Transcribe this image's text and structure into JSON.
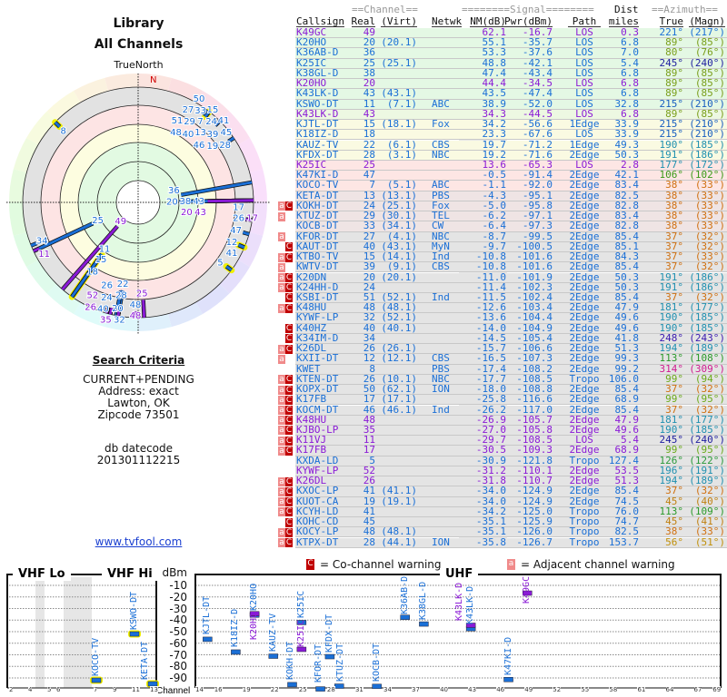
{
  "header": {
    "title": "Library",
    "subtitle": "All Channels",
    "north_label": "TrueNorth",
    "n_marker": "N"
  },
  "criteria": {
    "heading": "Search Criteria",
    "lines": [
      "CURRENT+PENDING",
      "Address: exact",
      "Lawton, OK",
      "Zipcode 73501"
    ],
    "db_label": "db datecode",
    "db_value": "201301112215",
    "link": "www.tvfool.com"
  },
  "table": {
    "group_headers": {
      "channel": "==Channel==",
      "signal": "========Signal========",
      "dist": "Dist",
      "azimuth": "==Azimuth=="
    },
    "columns": [
      "Callsign",
      "Real",
      "(Virt)",
      "Netwk",
      "NM(dB)",
      "Pwr(dBm)",
      "Path",
      "miles",
      "True",
      "(Magn)"
    ],
    "rows": [
      [
        "K49GC",
        "49",
        "",
        "",
        "62.1",
        "-16.7",
        "LOS",
        "0.3",
        "221°",
        "(217°)",
        1,
        "",
        "#1a6fd6"
      ],
      [
        "K20HO",
        "20",
        "(20.1)",
        "",
        "55.1",
        "-35.7",
        "LOS",
        "6.8",
        "89°",
        "(85°)",
        0,
        "",
        "#7a9e1a"
      ],
      [
        "K36AB-D",
        "36",
        "",
        "",
        "53.3",
        "-37.6",
        "LOS",
        "7.0",
        "80°",
        "(76°)",
        0,
        "",
        "#7a9e1a"
      ],
      [
        "K25IC",
        "25",
        "(25.1)",
        "",
        "48.8",
        "-42.1",
        "LOS",
        "5.4",
        "245°",
        "(240°)",
        0,
        "",
        "#2020a0"
      ],
      [
        "K38GL-D",
        "38",
        "",
        "",
        "47.4",
        "-43.4",
        "LOS",
        "6.8",
        "89°",
        "(85°)",
        0,
        "",
        "#7a9e1a"
      ],
      [
        "K20HO",
        "20",
        "",
        "",
        "44.4",
        "-34.5",
        "LOS",
        "6.8",
        "89°",
        "(85°)",
        1,
        "",
        "#7a9e1a"
      ],
      [
        "K43LK-D",
        "43",
        "(43.1)",
        "",
        "43.5",
        "-47.4",
        "LOS",
        "6.8",
        "89°",
        "(85°)",
        0,
        "",
        "#7a9e1a"
      ],
      [
        "KSWO-DT",
        "11",
        "(7.1)",
        "ABC",
        "38.9",
        "-52.0",
        "LOS",
        "32.8",
        "215°",
        "(210°)",
        0,
        "",
        "#1a5fc0"
      ],
      [
        "K43LK-D",
        "43",
        "",
        "",
        "34.3",
        "-44.5",
        "LOS",
        "6.8",
        "89°",
        "(85°)",
        1,
        "",
        "#7a9e1a"
      ],
      [
        "KJTL-DT",
        "15",
        "(18.1)",
        "Fox",
        "34.2",
        "-56.6",
        "1Edge",
        "33.9",
        "215°",
        "(210°)",
        0,
        "",
        "#1a5fc0"
      ],
      [
        "K18IZ-D",
        "18",
        "",
        "",
        "23.3",
        "-67.6",
        "LOS",
        "33.9",
        "215°",
        "(210°)",
        0,
        "",
        "#1a5fc0"
      ],
      [
        "KAUZ-TV",
        "22",
        "(6.1)",
        "CBS",
        "19.7",
        "-71.2",
        "1Edge",
        "49.3",
        "190°",
        "(185°)",
        0,
        "",
        "#2090b0"
      ],
      [
        "KFDX-DT",
        "28",
        "(3.1)",
        "NBC",
        "19.2",
        "-71.6",
        "2Edge",
        "50.3",
        "191°",
        "(186°)",
        0,
        "",
        "#2090b0"
      ],
      [
        "K25IC",
        "25",
        "",
        "",
        "13.6",
        "-65.3",
        "LOS",
        "2.8",
        "177°",
        "(172°)",
        1,
        "",
        "#2090b0"
      ],
      [
        "K47KI-D",
        "47",
        "",
        "",
        "-0.5",
        "-91.4",
        "2Edge",
        "42.1",
        "106°",
        "(102°)",
        0,
        "",
        "#3a9a1a"
      ],
      [
        "KOCO-TV",
        "7",
        "(5.1)",
        "ABC",
        "-1.1",
        "-92.0",
        "2Edge",
        "83.4",
        "38°",
        "(33°)",
        0,
        "",
        "#d07010"
      ],
      [
        "KETA-DT",
        "13",
        "(13.1)",
        "PBS",
        "-4.3",
        "-95.1",
        "2Edge",
        "82.5",
        "38°",
        "(33°)",
        0,
        "",
        "#d07010"
      ],
      [
        "KOKH-DT",
        "24",
        "(25.1)",
        "Fox",
        "-5.0",
        "-95.8",
        "2Edge",
        "82.8",
        "38°",
        "(33°)",
        0,
        "aC",
        "#d07010"
      ],
      [
        "KTUZ-DT",
        "29",
        "(30.1)",
        "TEL",
        "-6.2",
        "-97.1",
        "2Edge",
        "83.4",
        "38°",
        "(33°)",
        0,
        "a",
        "#d07010"
      ],
      [
        "KOCB-DT",
        "33",
        "(34.1)",
        "CW",
        "-6.4",
        "-97.3",
        "2Edge",
        "82.8",
        "38°",
        "(33°)",
        0,
        "",
        "#d07010"
      ],
      [
        "KFOR-DT",
        "27",
        "(4.1)",
        "NBC",
        "-8.7",
        "-99.5",
        "2Edge",
        "85.4",
        "37°",
        "(32°)",
        0,
        "a",
        "#d07010"
      ],
      [
        "KAUT-DT",
        "40",
        "(43.1)",
        "MyN",
        "-9.7",
        "-100.5",
        "2Edge",
        "85.1",
        "37°",
        "(32°)",
        0,
        "C",
        "#d07010"
      ],
      [
        "KTBO-TV",
        "15",
        "(14.1)",
        "Ind",
        "-10.8",
        "-101.6",
        "2Edge",
        "84.3",
        "37°",
        "(33°)",
        0,
        "aC",
        "#d07010"
      ],
      [
        "KWTV-DT",
        "39",
        "(9.1)",
        "CBS",
        "-10.8",
        "-101.6",
        "2Edge",
        "85.4",
        "37°",
        "(32°)",
        0,
        "a",
        "#d07010"
      ],
      [
        "K20DN",
        "20",
        "(20.1)",
        "",
        "-11.0",
        "-101.9",
        "2Edge",
        "50.3",
        "191°",
        "(186°)",
        0,
        "aC",
        "#2090b0"
      ],
      [
        "K24HH-D",
        "24",
        "",
        "",
        "-11.4",
        "-102.3",
        "2Edge",
        "50.3",
        "191°",
        "(186°)",
        0,
        "aC",
        "#2090b0"
      ],
      [
        "KSBI-DT",
        "51",
        "(52.1)",
        "Ind",
        "-11.5",
        "-102.4",
        "2Edge",
        "85.4",
        "37°",
        "(32°)",
        0,
        "C",
        "#d07010"
      ],
      [
        "K48HU",
        "48",
        "(48.1)",
        "",
        "-12.6",
        "-103.4",
        "2Edge",
        "47.9",
        "181°",
        "(177°)",
        0,
        "aC",
        "#2090b0"
      ],
      [
        "KYWF-LP",
        "32",
        "(52.1)",
        "",
        "-13.6",
        "-104.4",
        "2Edge",
        "49.6",
        "190°",
        "(185°)",
        0,
        "",
        "#2090b0"
      ],
      [
        "K40HZ",
        "40",
        "(40.1)",
        "",
        "-14.0",
        "-104.9",
        "2Edge",
        "49.6",
        "190°",
        "(185°)",
        0,
        "C",
        "#2090b0"
      ],
      [
        "K34IM-D",
        "34",
        "",
        "",
        "-14.5",
        "-105.4",
        "2Edge",
        "41.8",
        "248°",
        "(243°)",
        0,
        "C",
        "#3a1ab0"
      ],
      [
        "K26DL",
        "26",
        "(26.1)",
        "",
        "-15.7",
        "-106.6",
        "2Edge",
        "51.3",
        "194°",
        "(189°)",
        0,
        "aC",
        "#2090b0"
      ],
      [
        "KXII-DT",
        "12",
        "(12.1)",
        "CBS",
        "-16.5",
        "-107.3",
        "2Edge",
        "99.3",
        "113°",
        "(108°)",
        0,
        "a",
        "#2a9a2a"
      ],
      [
        "KWET",
        "8",
        "",
        "PBS",
        "-17.4",
        "-108.2",
        "2Edge",
        "99.2",
        "314°",
        "(309°)",
        0,
        "",
        "#d01a90"
      ],
      [
        "KTEN-DT",
        "26",
        "(10.1)",
        "NBC",
        "-17.7",
        "-108.5",
        "Tropo",
        "106.0",
        "99°",
        "(94°)",
        0,
        "aC",
        "#6aaa1a"
      ],
      [
        "KOPX-DT",
        "50",
        "(62.1)",
        "ION",
        "-18.0",
        "-108.8",
        "2Edge",
        "85.4",
        "37°",
        "(32°)",
        0,
        "aC",
        "#d07010"
      ],
      [
        "K17FB",
        "17",
        "(17.1)",
        "",
        "-25.8",
        "-116.6",
        "2Edge",
        "68.9",
        "99°",
        "(95°)",
        0,
        "aC",
        "#6aaa1a"
      ],
      [
        "KOCM-DT",
        "46",
        "(46.1)",
        "Ind",
        "-26.2",
        "-117.0",
        "2Edge",
        "85.4",
        "37°",
        "(32°)",
        0,
        "aC",
        "#d07010"
      ],
      [
        "K48HU",
        "48",
        "",
        "",
        "-26.9",
        "-105.7",
        "2Edge",
        "47.9",
        "181°",
        "(177°)",
        1,
        "aC",
        "#2090b0"
      ],
      [
        "KJBO-LP",
        "35",
        "",
        "",
        "-27.0",
        "-105.8",
        "2Edge",
        "49.6",
        "190°",
        "(185°)",
        1,
        "aC",
        "#2090b0"
      ],
      [
        "K11VJ",
        "11",
        "",
        "",
        "-29.7",
        "-108.5",
        "LOS",
        "5.4",
        "245°",
        "(240°)",
        1,
        "aC",
        "#2020a0"
      ],
      [
        "K17FB",
        "17",
        "",
        "",
        "-30.5",
        "-109.3",
        "2Edge",
        "68.9",
        "99°",
        "(95°)",
        1,
        "aC",
        "#6aaa1a"
      ],
      [
        "KXDA-LD",
        "5",
        "",
        "",
        "-30.9",
        "-121.8",
        "Tropo",
        "127.4",
        "126°",
        "(122°)",
        0,
        "",
        "#2a9a3a"
      ],
      [
        "KYWF-LP",
        "52",
        "",
        "",
        "-31.2",
        "-110.1",
        "2Edge",
        "53.5",
        "196°",
        "(191°)",
        1,
        "",
        "#2090b0"
      ],
      [
        "K26DL",
        "26",
        "",
        "",
        "-31.8",
        "-110.7",
        "2Edge",
        "51.3",
        "194°",
        "(189°)",
        1,
        "aC",
        "#2090b0"
      ],
      [
        "KXOC-LP",
        "41",
        "(41.1)",
        "",
        "-34.0",
        "-124.9",
        "2Edge",
        "85.4",
        "37°",
        "(32°)",
        0,
        "aC",
        "#d07010"
      ],
      [
        "KUOT-CA",
        "19",
        "(19.1)",
        "",
        "-34.0",
        "-124.9",
        "2Edge",
        "74.5",
        "45°",
        "(40°)",
        0,
        "aC",
        "#c08010"
      ],
      [
        "KCYH-LD",
        "41",
        "",
        "",
        "-34.2",
        "-125.0",
        "Tropo",
        "76.0",
        "113°",
        "(109°)",
        0,
        "aC",
        "#2a9a2a"
      ],
      [
        "KOHC-CD",
        "45",
        "",
        "",
        "-35.1",
        "-125.9",
        "Tropo",
        "74.7",
        "45°",
        "(41°)",
        0,
        "C",
        "#c08010"
      ],
      [
        "KOCY-LP",
        "48",
        "(48.1)",
        "",
        "-35.1",
        "-126.0",
        "Tropo",
        "82.5",
        "38°",
        "(33°)",
        0,
        "aC",
        "#d07010"
      ],
      [
        "KTPX-DT",
        "28",
        "(44.1)",
        "ION",
        "-35.8",
        "-126.7",
        "Tropo",
        "153.7",
        "56°",
        "(51°)",
        0,
        "aC",
        "#c0900a"
      ]
    ],
    "row_bands": [
      {
        "from": 0,
        "to": 7,
        "color": "#e4f8e4"
      },
      {
        "from": 8,
        "to": 8,
        "color": "#edf8e2"
      },
      {
        "from": 9,
        "to": 12,
        "color": "#fafae2"
      },
      {
        "from": 13,
        "to": 15,
        "color": "#fde6e4"
      },
      {
        "from": 16,
        "to": 19,
        "color": "#efe4e4"
      },
      {
        "from": 20,
        "to": 50,
        "color": "#e4e4e4"
      }
    ]
  },
  "colors": {
    "digital": "#1a6fd6",
    "analog": "#8a1ad6",
    "north": "#d00000",
    "co_warn": "#c00000",
    "adj_warn": "#f08a8a",
    "halo": "#f0f000"
  },
  "warnings": {
    "co_glyph": "C",
    "adj_glyph": "a",
    "co_label": "= Co-channel warning",
    "adj_label": "= Adjacent channel warning"
  },
  "spectrum": {
    "vhf_lo": "VHF Lo",
    "vhf_hi": "VHF Hi",
    "uhf": "UHF",
    "unit": "dBm",
    "channel_label": "Channel",
    "dbm_ticks": [
      "-10",
      "-20",
      "-30",
      "-40",
      "-50",
      "-60",
      "-70",
      "-80",
      "-90"
    ],
    "vhf_ticks": [
      "2",
      "4",
      "5",
      "6",
      "7",
      "9",
      "11",
      "13"
    ],
    "uhf_ticks": [
      "14",
      "16",
      "19",
      "22",
      "25",
      "28",
      "31",
      "34",
      "37",
      "40",
      "43",
      "46",
      "49",
      "52",
      "55",
      "58",
      "61",
      "64",
      "67",
      "69"
    ]
  }
}
